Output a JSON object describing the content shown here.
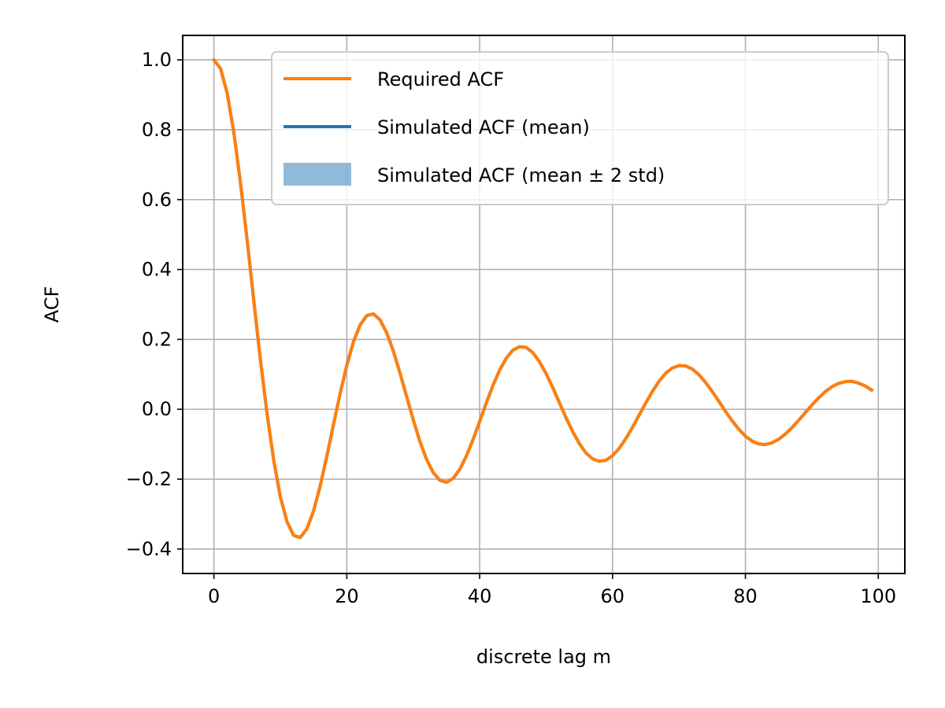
{
  "chart_data": {
    "type": "line",
    "title": "",
    "xlabel": "discrete lag m",
    "ylabel": "ACF",
    "xlim": [
      -4.7,
      104
    ],
    "ylim": [
      -0.47,
      1.07
    ],
    "grid": true,
    "legend_position": "top-right",
    "x_ticks": [
      0,
      20,
      40,
      60,
      80,
      100
    ],
    "x_tick_labels": [
      "0",
      "20",
      "40",
      "60",
      "80",
      "100"
    ],
    "y_ticks": [
      -0.4,
      -0.2,
      0.0,
      0.2,
      0.4,
      0.6,
      0.8,
      1.0
    ],
    "y_tick_labels": [
      "−0.4",
      "−0.2",
      "0.0",
      "0.2",
      "0.4",
      "0.6",
      "0.8",
      "1.0"
    ],
    "series": [
      {
        "name": "Required ACF",
        "kind": "line",
        "color": "#ff7f0e",
        "x": [
          0,
          1,
          2,
          3,
          4,
          5,
          6,
          7,
          8,
          9,
          10,
          11,
          12,
          13,
          14,
          15,
          16,
          17,
          18,
          19,
          20,
          21,
          22,
          23,
          24,
          25,
          26,
          27,
          28,
          29,
          30,
          31,
          32,
          33,
          34,
          35,
          36,
          37,
          38,
          39,
          40,
          41,
          42,
          43,
          44,
          45,
          46,
          47,
          48,
          49,
          50,
          51,
          52,
          53,
          54,
          55,
          56,
          57,
          58,
          59,
          60,
          61,
          62,
          63,
          64,
          65,
          66,
          67,
          68,
          69,
          70,
          71,
          72,
          73,
          74,
          75,
          76,
          77,
          78,
          79,
          80,
          81,
          82,
          83,
          84,
          85,
          86,
          87,
          88,
          89,
          90,
          91,
          92,
          93,
          94,
          95,
          96,
          97,
          98,
          99
        ],
        "values": [
          1.0,
          0.975,
          0.904,
          0.792,
          0.648,
          0.484,
          0.311,
          0.141,
          -0.013,
          -0.146,
          -0.251,
          -0.322,
          -0.361,
          -0.367,
          -0.342,
          -0.291,
          -0.219,
          -0.134,
          -0.044,
          0.045,
          0.126,
          0.193,
          0.241,
          0.268,
          0.273,
          0.256,
          0.219,
          0.167,
          0.104,
          0.037,
          -0.03,
          -0.092,
          -0.143,
          -0.181,
          -0.203,
          -0.209,
          -0.198,
          -0.172,
          -0.134,
          -0.087,
          -0.035,
          0.018,
          0.068,
          0.112,
          0.146,
          0.169,
          0.179,
          0.177,
          0.162,
          0.136,
          0.102,
          0.062,
          0.019,
          -0.024,
          -0.064,
          -0.098,
          -0.125,
          -0.142,
          -0.149,
          -0.146,
          -0.133,
          -0.112,
          -0.084,
          -0.052,
          -0.017,
          0.018,
          0.051,
          0.08,
          0.103,
          0.118,
          0.125,
          0.124,
          0.115,
          0.099,
          0.077,
          0.051,
          0.023,
          -0.006,
          -0.033,
          -0.057,
          -0.077,
          -0.091,
          -0.099,
          -0.101,
          -0.096,
          -0.086,
          -0.071,
          -0.053,
          -0.032,
          -0.01,
          0.012,
          0.032,
          0.05,
          0.064,
          0.074,
          0.079,
          0.08,
          0.075,
          0.067,
          0.055
        ]
      },
      {
        "name": "Simulated ACF (mean)",
        "kind": "line",
        "color": "#1f77b4",
        "x": [
          0,
          1,
          2,
          3,
          4,
          5,
          6,
          7,
          8,
          9,
          10,
          11,
          12,
          13,
          14,
          15,
          16,
          17,
          18,
          19,
          20,
          21,
          22,
          23,
          24,
          25,
          26,
          27,
          28,
          29,
          30,
          31,
          32,
          33,
          34,
          35,
          36,
          37,
          38,
          39,
          40,
          41,
          42,
          43,
          44,
          45,
          46,
          47,
          48,
          49,
          50,
          51,
          52,
          53,
          54,
          55,
          56,
          57,
          58,
          59,
          60,
          61,
          62,
          63,
          64,
          65,
          66,
          67,
          68,
          69,
          70,
          71,
          72,
          73,
          74,
          75,
          76,
          77,
          78,
          79,
          80,
          81,
          82,
          83,
          84,
          85,
          86,
          87,
          88,
          89,
          90,
          91,
          92,
          93,
          94,
          95,
          96,
          97,
          98,
          99
        ],
        "values": [
          1.0,
          0.975,
          0.904,
          0.792,
          0.648,
          0.484,
          0.311,
          0.141,
          -0.013,
          -0.146,
          -0.251,
          -0.322,
          -0.361,
          -0.367,
          -0.342,
          -0.291,
          -0.219,
          -0.134,
          -0.044,
          0.045,
          0.126,
          0.193,
          0.241,
          0.268,
          0.273,
          0.256,
          0.219,
          0.167,
          0.104,
          0.037,
          -0.03,
          -0.092,
          -0.143,
          -0.181,
          -0.203,
          -0.209,
          -0.198,
          -0.172,
          -0.134,
          -0.087,
          -0.035,
          0.018,
          0.068,
          0.112,
          0.146,
          0.169,
          0.179,
          0.177,
          0.162,
          0.136,
          0.102,
          0.062,
          0.019,
          -0.024,
          -0.064,
          -0.098,
          -0.125,
          -0.142,
          -0.149,
          -0.146,
          -0.133,
          -0.112,
          -0.084,
          -0.052,
          -0.017,
          0.018,
          0.051,
          0.08,
          0.103,
          0.118,
          0.125,
          0.124,
          0.115,
          0.099,
          0.077,
          0.051,
          0.023,
          -0.006,
          -0.033,
          -0.057,
          -0.077,
          -0.091,
          -0.099,
          -0.101,
          -0.096,
          -0.086,
          -0.071,
          -0.053,
          -0.032,
          -0.01,
          0.012,
          0.032,
          0.05,
          0.064,
          0.074,
          0.079,
          0.08,
          0.075,
          0.067,
          0.055
        ]
      }
    ],
    "band": {
      "name": "Simulated ACF (mean ± 2 std)",
      "color": "#1f77b4",
      "opacity": 0.5,
      "x": [
        0,
        1,
        2,
        3,
        4,
        5,
        6,
        7,
        8,
        9,
        10,
        11,
        12,
        13,
        14,
        15,
        16,
        17,
        18,
        19,
        20,
        21,
        22,
        23,
        24,
        25,
        26,
        27,
        28,
        29,
        30,
        31,
        32,
        33,
        34,
        35,
        36,
        37,
        38,
        39,
        40,
        41,
        42,
        43,
        44,
        45,
        46,
        47,
        48,
        49,
        50,
        51,
        52,
        53,
        54,
        55,
        56,
        57,
        58,
        59,
        60,
        61,
        62,
        63,
        64,
        65,
        66,
        67,
        68,
        69,
        70,
        71,
        72,
        73,
        74,
        75,
        76,
        77,
        78,
        79,
        80,
        81,
        82,
        83,
        84,
        85,
        86,
        87,
        88,
        89,
        90,
        91,
        92,
        93,
        94,
        95,
        96,
        97,
        98,
        99
      ],
      "lower": [
        1.0,
        0.975,
        0.904,
        0.792,
        0.648,
        0.484,
        0.311,
        0.141,
        -0.013,
        -0.146,
        -0.251,
        -0.322,
        -0.361,
        -0.367,
        -0.342,
        -0.291,
        -0.219,
        -0.134,
        -0.044,
        0.045,
        0.126,
        0.193,
        0.241,
        0.268,
        0.273,
        0.256,
        0.219,
        0.167,
        0.104,
        0.037,
        -0.03,
        -0.092,
        -0.143,
        -0.181,
        -0.203,
        -0.209,
        -0.198,
        -0.172,
        -0.134,
        -0.087,
        -0.035,
        0.018,
        0.068,
        0.112,
        0.146,
        0.169,
        0.179,
        0.177,
        0.162,
        0.136,
        0.102,
        0.062,
        0.019,
        -0.024,
        -0.064,
        -0.098,
        -0.125,
        -0.142,
        -0.149,
        -0.146,
        -0.133,
        -0.112,
        -0.084,
        -0.052,
        -0.017,
        0.018,
        0.051,
        0.08,
        0.103,
        0.118,
        0.125,
        0.124,
        0.115,
        0.099,
        0.077,
        0.051,
        0.023,
        -0.006,
        -0.033,
        -0.057,
        -0.077,
        -0.091,
        -0.099,
        -0.101,
        -0.096,
        -0.086,
        -0.071,
        -0.053,
        -0.032,
        -0.01,
        0.012,
        0.032,
        0.05,
        0.064,
        0.074,
        0.079,
        0.08,
        0.075,
        0.067,
        0.055
      ],
      "upper": [
        1.0,
        0.975,
        0.904,
        0.792,
        0.648,
        0.484,
        0.311,
        0.141,
        -0.013,
        -0.146,
        -0.251,
        -0.322,
        -0.361,
        -0.367,
        -0.342,
        -0.291,
        -0.219,
        -0.134,
        -0.044,
        0.045,
        0.126,
        0.193,
        0.241,
        0.268,
        0.273,
        0.256,
        0.219,
        0.167,
        0.104,
        0.037,
        -0.03,
        -0.092,
        -0.143,
        -0.181,
        -0.203,
        -0.209,
        -0.198,
        -0.172,
        -0.134,
        -0.087,
        -0.035,
        0.018,
        0.068,
        0.112,
        0.146,
        0.169,
        0.179,
        0.177,
        0.162,
        0.136,
        0.102,
        0.062,
        0.019,
        -0.024,
        -0.064,
        -0.098,
        -0.125,
        -0.142,
        -0.149,
        -0.146,
        -0.133,
        -0.112,
        -0.084,
        -0.052,
        -0.017,
        0.018,
        0.051,
        0.08,
        0.103,
        0.118,
        0.125,
        0.124,
        0.115,
        0.099,
        0.077,
        0.051,
        0.023,
        -0.006,
        -0.033,
        -0.057,
        -0.077,
        -0.091,
        -0.099,
        -0.101,
        -0.096,
        -0.086,
        -0.071,
        -0.053,
        -0.032,
        -0.01,
        0.012,
        0.032,
        0.05,
        0.064,
        0.074,
        0.079,
        0.08,
        0.075,
        0.067,
        0.055
      ]
    }
  }
}
